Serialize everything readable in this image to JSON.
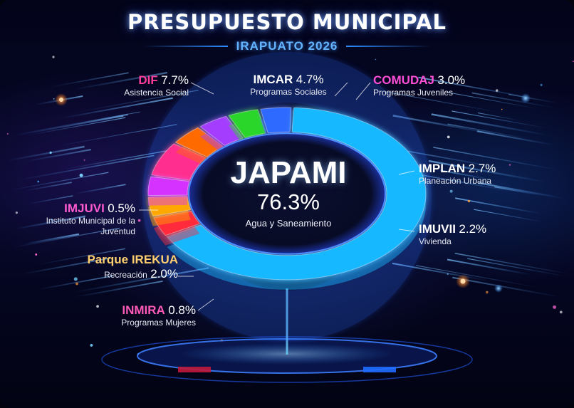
{
  "header": {
    "title": "PRESUPUESTO MUNICIPAL",
    "subtitle": "IRAPUATO 2026"
  },
  "chart_data": {
    "type": "pie",
    "title": "PRESUPUESTO MUNICIPAL",
    "subtitle": "IRAPUATO 2026",
    "unit": "%",
    "slices": [
      {
        "name": "JAPAMI",
        "value": 76.3,
        "value_label": "76.3%",
        "description": "Agua y Saneamiento",
        "color": "#19b8ff"
      },
      {
        "name": "DIF",
        "value": 7.7,
        "value_label": "7.7%",
        "description": "Asistencia Social",
        "color": "#ff2d8f"
      },
      {
        "name": "IMCAR",
        "value": 4.7,
        "value_label": "4.7%",
        "description": "Programas Sociales",
        "color": "#ff6a00"
      },
      {
        "name": "COMUDAJ",
        "value": 3.0,
        "value_label": "3.0%",
        "description": "Programas Juveniles",
        "color": "#a53cff"
      },
      {
        "name": "IMPLAN",
        "value": 2.7,
        "value_label": "2.7%",
        "description": "Planeación Urbana",
        "color": "#2bd62b"
      },
      {
        "name": "IMUVII",
        "value": 2.2,
        "value_label": "2.2%",
        "description": "Vivienda",
        "color": "#2f6bff"
      },
      {
        "name": "Parque IREKUA",
        "value": 2.0,
        "value_label": "2.0%",
        "description": "Recreación",
        "color": "#ffa800"
      },
      {
        "name": "INMIRA",
        "value": 0.8,
        "value_label": "0.8%",
        "description": "Programas Mujeres",
        "color": "#ff2a3a"
      },
      {
        "name": "IMJUVI",
        "value": 0.5,
        "value_label": "0.5%",
        "description": "Instituto Municipal de la Juventud",
        "color": "#d631ff"
      }
    ]
  },
  "colors": {
    "background": "#03041a",
    "title": "#ffffff",
    "subtitle": "#63b3ff",
    "label_text": "#ffffff"
  }
}
